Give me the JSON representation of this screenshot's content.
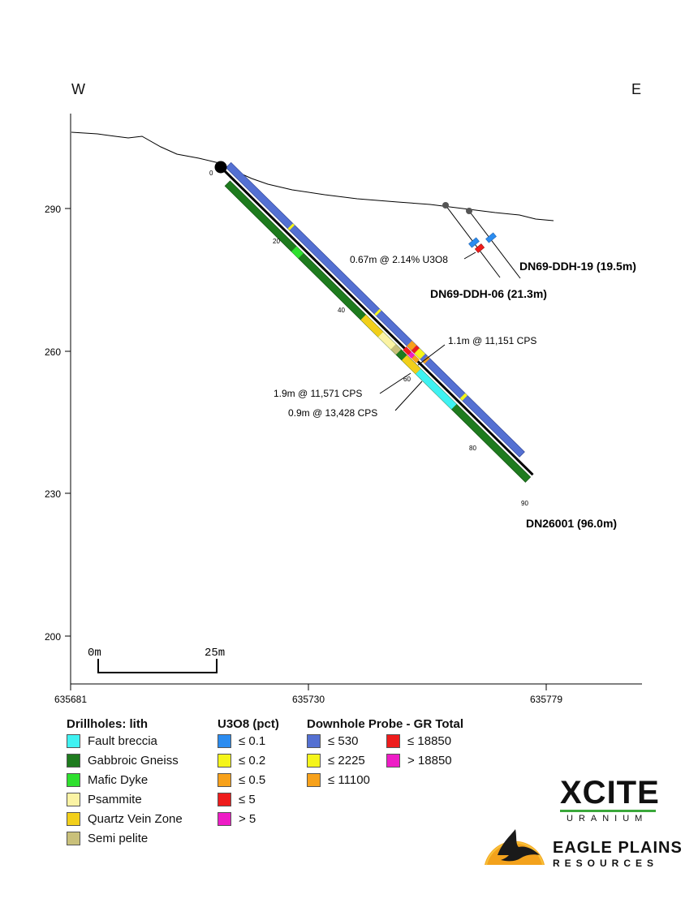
{
  "compass": {
    "west": "W",
    "east": "E"
  },
  "axes": {
    "y_ticks": [
      "290",
      "260",
      "230",
      "200"
    ],
    "x_ticks": [
      "635681",
      "635730",
      "635779"
    ]
  },
  "scale_bar": {
    "start": "0m",
    "end": "25m"
  },
  "depth_marks": [
    "0",
    "20",
    "40",
    "60",
    "80",
    "90"
  ],
  "holes": {
    "main": "DN26001 (96.0m)",
    "hole_19": "DN69-DDH-19 (19.5m)",
    "hole_06": "DN69-DDH-06 (21.3m)"
  },
  "annotations": {
    "assay": "0.67m @ 2.14% U3O8",
    "cps_1": "1.1m @ 11,151 CPS",
    "cps_2": "1.9m @ 11,571 CPS",
    "cps_3": "0.9m  @ 13,428 CPS"
  },
  "legend": {
    "lith": {
      "title": "Drillholes: lith",
      "items": [
        {
          "label": "Fault breccia",
          "color": "#3ff2f2"
        },
        {
          "label": "Gabbroic Gneiss",
          "color": "#1e7b1e"
        },
        {
          "label": "Mafic Dyke",
          "color": "#2ee02e"
        },
        {
          "label": "Psammite",
          "color": "#fbf3a4"
        },
        {
          "label": "Quartz Vein Zone",
          "color": "#f2cf1a"
        },
        {
          "label": "Semi pelite",
          "color": "#c9c07a"
        }
      ]
    },
    "u3o8": {
      "title": "U3O8 (pct)",
      "items": [
        {
          "label": "≤ 0.1",
          "color": "#2b8cf0"
        },
        {
          "label": "≤ 0.2",
          "color": "#f5f51a"
        },
        {
          "label": "≤ 0.5",
          "color": "#f7a11a"
        },
        {
          "label": "≤ 5",
          "color": "#ee1c1c"
        },
        {
          "label": "> 5",
          "color": "#ee1cc6"
        }
      ]
    },
    "probe": {
      "title": "Downhole Probe - GR Total",
      "items": [
        {
          "label": "≤ 530",
          "color": "#5470d2"
        },
        {
          "label": "≤ 2225",
          "color": "#f5f51a"
        },
        {
          "label": "≤ 11100",
          "color": "#f7a11a"
        },
        {
          "label": "≤ 18850",
          "color": "#ee1c1c"
        },
        {
          "label": "> 18850",
          "color": "#ee1cc6"
        }
      ]
    }
  },
  "logos": {
    "xcite": "XCITE",
    "uranium": "URANIUM",
    "eagle": "EAGLE PLAINS",
    "resources": "RESOURCES"
  }
}
